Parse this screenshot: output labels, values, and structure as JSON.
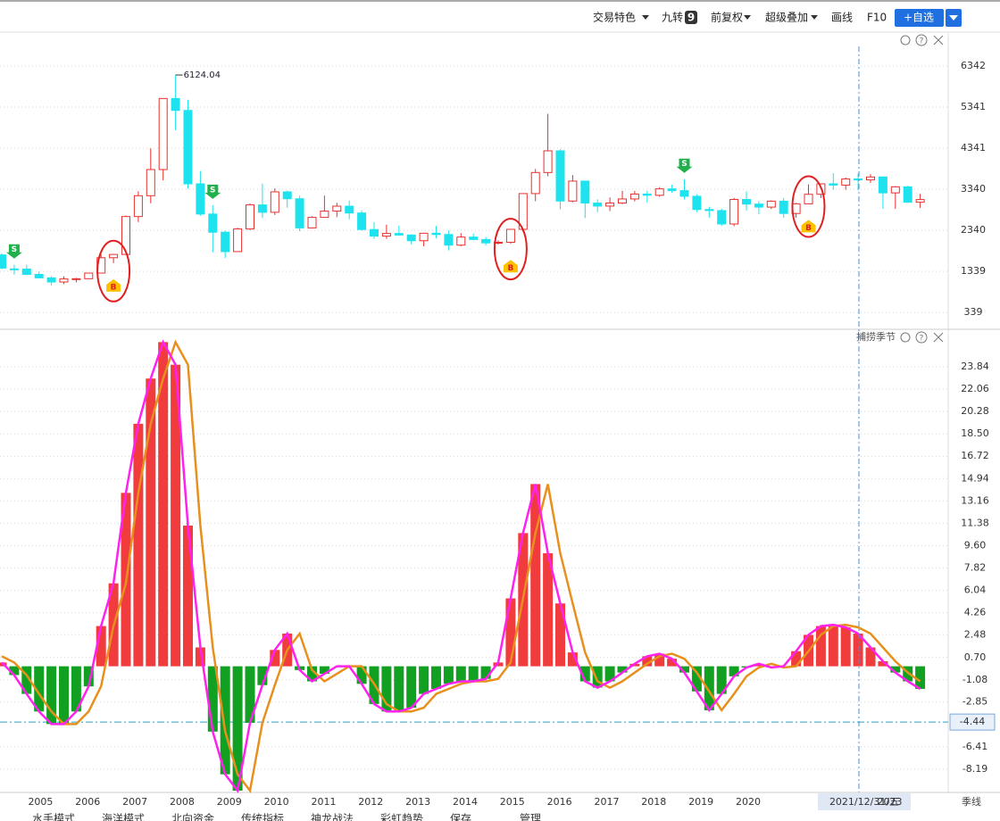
{
  "toolbar": {
    "items": [
      "交易特色",
      "九转",
      "9",
      "前复权",
      "超级叠加",
      "画线",
      "F10",
      "+自选"
    ]
  },
  "period_label": "季线",
  "crosshair_label": "2021/12/31/五",
  "tabs": [
    "水手模式",
    "海洋模式",
    "北向资金",
    "传统指标",
    "神龙战法",
    "彩虹趋势",
    "保存",
    "管理"
  ],
  "chart_data": [
    {
      "type": "candlestick",
      "up_color": "#e8312f",
      "down_color": "#1ee3ee",
      "ylim": [
        -50,
        7125
      ],
      "yticks": [
        6342,
        5341,
        4341,
        3340,
        2340,
        1339,
        339
      ],
      "grid": true,
      "ohlc": [
        [
          1740,
          1780,
          1390,
          1420
        ],
        [
          1400,
          1500,
          1260,
          1396
        ],
        [
          1396,
          1500,
          1250,
          1266
        ],
        [
          1266,
          1330,
          1180,
          1181
        ],
        [
          1181,
          1220,
          998,
          1080
        ],
        [
          1080,
          1220,
          1030,
          1155
        ],
        [
          1155,
          1180,
          1070,
          1161
        ],
        [
          1161,
          1300,
          1150,
          1298
        ],
        [
          1298,
          1750,
          1290,
          1672
        ],
        [
          1672,
          1760,
          1540,
          1752
        ],
        [
          1752,
          2700,
          1740,
          2675
        ],
        [
          2675,
          3290,
          2540,
          3183
        ],
        [
          3183,
          4335,
          3000,
          3820
        ],
        [
          3820,
          5560,
          3560,
          5552
        ],
        [
          5552,
          6124.04,
          4780,
          5261
        ],
        [
          5261,
          5522,
          3357,
          3472
        ],
        [
          3472,
          3786,
          2693,
          2736
        ],
        [
          2736,
          2953,
          1802,
          2293
        ],
        [
          2293,
          2333,
          1664,
          1821
        ],
        [
          1821,
          2402,
          1814,
          2373
        ],
        [
          2373,
          2990,
          2350,
          2959
        ],
        [
          2959,
          3478,
          2639,
          2779
        ],
        [
          2779,
          3361,
          2712,
          3277
        ],
        [
          3277,
          3306,
          2890,
          3109
        ],
        [
          3109,
          3181,
          2319,
          2398
        ],
        [
          2398,
          2681,
          2383,
          2655
        ],
        [
          2655,
          3186,
          2661,
          2808
        ],
        [
          2808,
          3011,
          2661,
          2928
        ],
        [
          2928,
          3067,
          2610,
          2762
        ],
        [
          2762,
          2826,
          2331,
          2359
        ],
        [
          2359,
          2536,
          2134,
          2199
        ],
        [
          2199,
          2478,
          2132,
          2263
        ],
        [
          2263,
          2453,
          2209,
          2225
        ],
        [
          2225,
          2246,
          1999,
          2086
        ],
        [
          2086,
          2276,
          1949,
          2269
        ],
        [
          2269,
          2444,
          2148,
          2237
        ],
        [
          2237,
          2334,
          1849,
          1979
        ],
        [
          1979,
          2270,
          1951,
          2175
        ],
        [
          2175,
          2260,
          2098,
          2116
        ],
        [
          2116,
          2177,
          1974,
          2033
        ],
        [
          2033,
          2097,
          1991,
          2048
        ],
        [
          2048,
          2366,
          2010,
          2364
        ],
        [
          2364,
          3239,
          2302,
          3235
        ],
        [
          3235,
          3835,
          3049,
          3748
        ],
        [
          3748,
          5178,
          3656,
          4277
        ],
        [
          4277,
          4318,
          2851,
          3053
        ],
        [
          3053,
          3684,
          3023,
          3539
        ],
        [
          3539,
          3539,
          2638,
          3004
        ],
        [
          3004,
          3097,
          2781,
          2930
        ],
        [
          2930,
          3140,
          2808,
          3005
        ],
        [
          3005,
          3301,
          2980,
          3104
        ],
        [
          3104,
          3301,
          3044,
          3223
        ],
        [
          3223,
          3295,
          3016,
          3193
        ],
        [
          3193,
          3391,
          3159,
          3349
        ],
        [
          3349,
          3450,
          3254,
          3307
        ],
        [
          3307,
          3587,
          3091,
          3169
        ],
        [
          3169,
          3220,
          2782,
          2847
        ],
        [
          2847,
          2915,
          2644,
          2821
        ],
        [
          2821,
          2868,
          2449,
          2494
        ],
        [
          2494,
          3129,
          2440,
          3091
        ],
        [
          3091,
          3288,
          2822,
          2979
        ],
        [
          2979,
          3049,
          2733,
          2905
        ],
        [
          2905,
          3069,
          2857,
          3050
        ],
        [
          3050,
          3127,
          2647,
          2750
        ],
        [
          2750,
          3007,
          2646,
          2985
        ],
        [
          2985,
          3458,
          2986,
          3218
        ],
        [
          3218,
          3474,
          3127,
          3473
        ],
        [
          3473,
          3732,
          3328,
          3441
        ],
        [
          3441,
          3625,
          3328,
          3591
        ],
        [
          3591,
          3723,
          3312,
          3568
        ],
        [
          3568,
          3709,
          3498,
          3640
        ],
        [
          3640,
          3651,
          2863,
          3252
        ],
        [
          3252,
          3419,
          2863,
          3399
        ],
        [
          3399,
          3424,
          3021,
          3024
        ],
        [
          3024,
          3226,
          2886,
          3089
        ]
      ],
      "signals": [
        null,
        "S",
        null,
        null,
        null,
        null,
        null,
        null,
        null,
        "B",
        null,
        null,
        null,
        null,
        null,
        null,
        null,
        "S",
        null,
        null,
        null,
        null,
        null,
        null,
        null,
        null,
        null,
        null,
        null,
        null,
        null,
        null,
        null,
        null,
        null,
        null,
        null,
        null,
        null,
        null,
        null,
        "B",
        null,
        null,
        null,
        null,
        null,
        null,
        null,
        null,
        null,
        null,
        null,
        null,
        null,
        "S",
        null,
        null,
        null,
        null,
        null,
        null,
        null,
        null,
        null,
        "B",
        null,
        null,
        null,
        null,
        null,
        null,
        null,
        null,
        null
      ]
    },
    {
      "type": "macd",
      "title": "捕捞季节",
      "up_color": "#f03c3c",
      "down_color": "#12a022",
      "line_color": "#ff22ee",
      "signal_color": "#e8901e",
      "ylim": [
        -9.9,
        26.75
      ],
      "yticks": [
        23.84,
        22.06,
        20.28,
        {
          "value": 18.5,
          "label": "18.50"
        },
        16.72,
        14.94,
        13.16,
        11.38,
        {
          "value": 9.6,
          "label": "9.60"
        },
        7.82,
        6.04,
        4.26,
        2.48,
        {
          "value": 0.7,
          "label": "0.70"
        },
        -1.08,
        -2.85,
        -6.41,
        -8.19
      ],
      "ref_line": -4.44,
      "xlim": [
        2004.14,
        2024.24
      ],
      "xticks": [
        2005,
        2006,
        2007,
        2008,
        2009,
        2010,
        2011,
        2012,
        2013,
        2014,
        2015,
        2016,
        2017,
        2018,
        2019,
        2020,
        2023
      ],
      "values": [
        0.3,
        -0.7,
        -2.2,
        -3.6,
        -4.6,
        -4.6,
        -3.6,
        -1.6,
        3.2,
        6.6,
        13.8,
        19.3,
        22.9,
        25.8,
        24.0,
        11.2,
        1.5,
        -5.2,
        -8.6,
        -9.9,
        -4.5,
        -1.5,
        1.3,
        2.6,
        -0.3,
        -1.2,
        -0.6,
        0.0,
        0.0,
        -1.4,
        -3.0,
        -3.6,
        -3.6,
        -3.3,
        -2.2,
        -1.8,
        -1.4,
        -1.2,
        -1.2,
        -1.0,
        0.3,
        5.4,
        10.6,
        14.5,
        9.0,
        5.0,
        1.1,
        -1.2,
        -1.7,
        -1.2,
        -0.5,
        0.2,
        0.8,
        1.0,
        0.6,
        -0.5,
        -2.0,
        -3.5,
        -2.2,
        -0.8,
        -0.1,
        0.2,
        -0.1,
        0.0,
        1.2,
        2.5,
        3.2,
        3.3,
        3.1,
        2.6,
        1.5,
        0.4,
        -0.5,
        -1.2,
        -1.8
      ],
      "signal": [
        0.8,
        0.3,
        -0.7,
        -2.2,
        -3.6,
        -4.6,
        -4.6,
        -3.6,
        -1.6,
        3.2,
        6.6,
        13.8,
        19.3,
        22.9,
        25.8,
        24.0,
        11.2,
        1.5,
        -5.2,
        -8.6,
        -9.9,
        -4.5,
        -1.5,
        1.3,
        2.6,
        -0.3,
        -1.2,
        -0.6,
        0.0,
        0.0,
        -1.4,
        -3.0,
        -3.6,
        -3.6,
        -3.3,
        -2.2,
        -1.8,
        -1.4,
        -1.2,
        -1.2,
        -1.0,
        0.3,
        5.4,
        10.6,
        14.5,
        9.0,
        5.0,
        1.1,
        -1.2,
        -1.7,
        -1.2,
        -0.5,
        0.2,
        0.8,
        1.0,
        0.6,
        -0.5,
        -2.0,
        -3.5,
        -2.2,
        -0.8,
        -0.1,
        0.2,
        -0.1,
        0.0,
        1.2,
        2.5,
        3.2,
        3.3,
        3.1,
        2.6,
        1.5,
        0.4,
        -0.5,
        -1.2
      ]
    }
  ]
}
